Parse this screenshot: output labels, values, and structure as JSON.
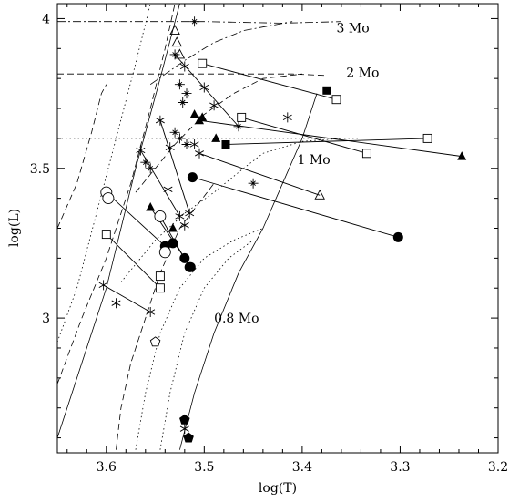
{
  "chart_data": {
    "type": "scatter",
    "title": "",
    "xlabel": "log(T)",
    "ylabel": "log(L)",
    "x_reversed": true,
    "xlim": [
      3.65,
      3.2
    ],
    "ylim": [
      2.55,
      4.05
    ],
    "grid": false,
    "x_ticks": [
      {
        "value": 3.6,
        "label": "3.6"
      },
      {
        "value": 3.5,
        "label": "3.5"
      },
      {
        "value": 3.4,
        "label": "3.4"
      },
      {
        "value": 3.3,
        "label": "3.3"
      },
      {
        "value": 3.2,
        "label": "3.2"
      }
    ],
    "y_ticks": [
      {
        "value": 3.0,
        "label": "3"
      },
      {
        "value": 3.5,
        "label": "3.5"
      },
      {
        "value": 4.0,
        "label": "4"
      }
    ],
    "annotations": [
      {
        "text": "3 Mo",
        "x": 3.365,
        "y": 3.97
      },
      {
        "text": "2 Mo",
        "x": 3.355,
        "y": 3.82
      },
      {
        "text": "1 Mo",
        "x": 3.405,
        "y": 3.53
      },
      {
        "text": "0.8 Mo",
        "x": 3.49,
        "y": 3.0
      }
    ],
    "tracks": [
      {
        "style": "dashdot",
        "points": [
          [
            3.65,
            3.99
          ],
          [
            3.5,
            3.99
          ],
          [
            3.42,
            3.985
          ],
          [
            3.36,
            3.99
          ]
        ]
      },
      {
        "style": "dashdot",
        "points": [
          [
            3.555,
            3.78
          ],
          [
            3.52,
            3.86
          ],
          [
            3.49,
            3.92
          ],
          [
            3.46,
            3.96
          ],
          [
            3.41,
            3.99
          ]
        ]
      },
      {
        "style": "dashed",
        "points": [
          [
            3.65,
            3.815
          ],
          [
            3.5,
            3.815
          ],
          [
            3.44,
            3.815
          ],
          [
            3.41,
            3.815
          ],
          [
            3.375,
            3.81
          ]
        ]
      },
      {
        "style": "dashed",
        "points": [
          [
            3.57,
            3.42
          ],
          [
            3.53,
            3.58
          ],
          [
            3.5,
            3.68
          ],
          [
            3.47,
            3.75
          ],
          [
            3.44,
            3.8
          ],
          [
            3.4,
            3.815
          ]
        ]
      },
      {
        "style": "dotted",
        "points": [
          [
            3.65,
            3.6
          ],
          [
            3.48,
            3.6
          ],
          [
            3.38,
            3.6
          ],
          [
            3.34,
            3.6
          ]
        ]
      },
      {
        "style": "dotted",
        "points": [
          [
            3.585,
            3.12
          ],
          [
            3.55,
            3.26
          ],
          [
            3.52,
            3.35
          ],
          [
            3.49,
            3.42
          ],
          [
            3.46,
            3.5
          ],
          [
            3.44,
            3.55
          ],
          [
            3.4,
            3.59
          ],
          [
            3.36,
            3.6
          ]
        ]
      },
      {
        "style": "solid",
        "points": [
          [
            3.65,
            2.6
          ],
          [
            3.6,
            3.1
          ],
          [
            3.57,
            3.5
          ],
          [
            3.545,
            3.8
          ],
          [
            3.525,
            4.05
          ]
        ]
      },
      {
        "style": "solid",
        "points": [
          [
            3.525,
            2.56
          ],
          [
            3.51,
            2.75
          ],
          [
            3.49,
            2.95
          ],
          [
            3.465,
            3.15
          ],
          [
            3.44,
            3.3
          ],
          [
            3.42,
            3.45
          ],
          [
            3.4,
            3.6
          ],
          [
            3.385,
            3.75
          ]
        ]
      },
      {
        "style": "dashed",
        "points": [
          [
            3.65,
            2.78
          ],
          [
            3.625,
            3.0
          ],
          [
            3.6,
            3.2
          ],
          [
            3.575,
            3.45
          ],
          [
            3.555,
            3.7
          ],
          [
            3.54,
            3.9
          ],
          [
            3.53,
            4.05
          ]
        ]
      },
      {
        "style": "dashed",
        "points": [
          [
            3.59,
            2.56
          ],
          [
            3.585,
            2.7
          ],
          [
            3.575,
            2.85
          ],
          [
            3.56,
            3.0
          ],
          [
            3.545,
            3.15
          ],
          [
            3.525,
            3.3
          ],
          [
            3.49,
            3.45
          ]
        ]
      },
      {
        "style": "dotted",
        "points": [
          [
            3.65,
            2.92
          ],
          [
            3.63,
            3.1
          ],
          [
            3.61,
            3.35
          ],
          [
            3.59,
            3.6
          ],
          [
            3.57,
            3.85
          ],
          [
            3.555,
            4.05
          ]
        ]
      },
      {
        "style": "dotted",
        "points": [
          [
            3.57,
            2.56
          ],
          [
            3.56,
            2.75
          ],
          [
            3.545,
            2.95
          ],
          [
            3.525,
            3.1
          ],
          [
            3.5,
            3.2
          ],
          [
            3.47,
            3.26
          ],
          [
            3.44,
            3.3
          ]
        ]
      },
      {
        "style": "dotted",
        "points": [
          [
            3.545,
            2.56
          ],
          [
            3.535,
            2.75
          ],
          [
            3.52,
            2.95
          ],
          [
            3.5,
            3.1
          ],
          [
            3.475,
            3.2
          ],
          [
            3.45,
            3.26
          ]
        ]
      },
      {
        "style": "dashed",
        "points": [
          [
            3.65,
            3.3
          ],
          [
            3.63,
            3.45
          ],
          [
            3.615,
            3.62
          ],
          [
            3.605,
            3.75
          ],
          [
            3.6,
            3.78
          ]
        ]
      }
    ],
    "pairs": [
      {
        "from": {
          "sym": "square-open",
          "x": 3.6,
          "y": 3.28
        },
        "to": {
          "sym": "square-open",
          "x": 3.545,
          "y": 3.1
        },
        "mid": {
          "sym": "square-open",
          "x": 3.545,
          "y": 3.14
        }
      },
      {
        "from": {
          "sym": "asterisk",
          "x": 3.565,
          "y": 3.56
        },
        "to": {
          "sym": "asterisk",
          "x": 3.525,
          "y": 3.34
        }
      },
      {
        "from": {
          "sym": "asterisk",
          "x": 3.545,
          "y": 3.66
        },
        "to": {
          "sym": "asterisk",
          "x": 3.515,
          "y": 3.35
        }
      },
      {
        "from": {
          "sym": "triangle-filled",
          "x": 3.555,
          "y": 3.37
        },
        "to": {
          "sym": "circle-filled",
          "x": 3.52,
          "y": 3.2
        }
      },
      {
        "from": {
          "sym": "circle-open",
          "x": 3.6,
          "y": 3.42
        },
        "to": {
          "sym": "circle-filled",
          "x": 3.54,
          "y": 3.24
        }
      },
      {
        "from": {
          "sym": "circle-open",
          "x": 3.545,
          "y": 3.34
        },
        "to": {
          "sym": "circle-filled",
          "x": 3.515,
          "y": 3.17
        }
      },
      {
        "from": {
          "sym": "circle-filled",
          "x": 3.512,
          "y": 3.47
        },
        "to": {
          "sym": "circle-filled",
          "x": 3.302,
          "y": 3.27
        }
      },
      {
        "from": {
          "sym": "square-open",
          "x": 3.502,
          "y": 3.85
        },
        "to": {
          "sym": "square-open",
          "x": 3.365,
          "y": 3.73
        },
        "mid": {
          "sym": "square-filled",
          "x": 3.375,
          "y": 3.76
        }
      },
      {
        "from": {
          "sym": "star",
          "x": 3.53,
          "y": 3.88
        },
        "to": {
          "sym": "star",
          "x": 3.465,
          "y": 3.64
        }
      },
      {
        "from": {
          "sym": "triangle-filled",
          "x": 3.505,
          "y": 3.66
        },
        "to": {
          "sym": "triangle-filled",
          "x": 3.237,
          "y": 3.54
        }
      },
      {
        "from": {
          "sym": "square-open",
          "x": 3.462,
          "y": 3.67
        },
        "to": {
          "sym": "square-open",
          "x": 3.334,
          "y": 3.55
        },
        "mid": {
          "sym": "asterisk",
          "x": 3.415,
          "y": 3.67
        }
      },
      {
        "from": {
          "sym": "square-filled",
          "x": 3.478,
          "y": 3.58
        },
        "to": {
          "sym": "square-open",
          "x": 3.272,
          "y": 3.6
        }
      },
      {
        "from": {
          "sym": "asterisk",
          "x": 3.505,
          "y": 3.55
        },
        "to": {
          "sym": "triangle-open",
          "x": 3.382,
          "y": 3.41
        },
        "mid": {
          "sym": "star",
          "x": 3.45,
          "y": 3.45
        }
      },
      {
        "from": {
          "sym": "asterisk",
          "x": 3.603,
          "y": 3.11
        },
        "to": {
          "sym": "asterisk",
          "x": 3.555,
          "y": 3.02
        },
        "mid": {
          "sym": "asterisk",
          "x": 3.59,
          "y": 3.05
        }
      }
    ],
    "points": [
      {
        "sym": "star",
        "x": 3.51,
        "y": 3.99
      },
      {
        "sym": "triangle-open",
        "x": 3.53,
        "y": 3.96
      },
      {
        "sym": "triangle-open",
        "x": 3.528,
        "y": 3.92
      },
      {
        "sym": "triangle-open",
        "x": 3.525,
        "y": 3.88
      },
      {
        "sym": "asterisk",
        "x": 3.52,
        "y": 3.84
      },
      {
        "sym": "star",
        "x": 3.525,
        "y": 3.78
      },
      {
        "sym": "star",
        "x": 3.518,
        "y": 3.75
      },
      {
        "sym": "star",
        "x": 3.522,
        "y": 3.72
      },
      {
        "sym": "asterisk",
        "x": 3.5,
        "y": 3.77
      },
      {
        "sym": "asterisk",
        "x": 3.49,
        "y": 3.71
      },
      {
        "sym": "triangle-filled",
        "x": 3.51,
        "y": 3.68
      },
      {
        "sym": "triangle-filled",
        "x": 3.502,
        "y": 3.67
      },
      {
        "sym": "triangle-filled",
        "x": 3.488,
        "y": 3.6
      },
      {
        "sym": "star",
        "x": 3.53,
        "y": 3.62
      },
      {
        "sym": "star",
        "x": 3.525,
        "y": 3.6
      },
      {
        "sym": "star",
        "x": 3.518,
        "y": 3.58
      },
      {
        "sym": "asterisk",
        "x": 3.51,
        "y": 3.58
      },
      {
        "sym": "asterisk",
        "x": 3.535,
        "y": 3.57
      },
      {
        "sym": "star",
        "x": 3.56,
        "y": 3.52
      },
      {
        "sym": "star",
        "x": 3.555,
        "y": 3.5
      },
      {
        "sym": "asterisk",
        "x": 3.537,
        "y": 3.43
      },
      {
        "sym": "triangle-filled",
        "x": 3.532,
        "y": 3.3
      },
      {
        "sym": "asterisk",
        "x": 3.52,
        "y": 3.31
      },
      {
        "sym": "circle-open",
        "x": 3.598,
        "y": 3.4
      },
      {
        "sym": "circle-open",
        "x": 3.54,
        "y": 3.22
      },
      {
        "sym": "circle-filled",
        "x": 3.532,
        "y": 3.25
      },
      {
        "sym": "circle-filled",
        "x": 3.514,
        "y": 3.17
      },
      {
        "sym": "pentagon-open",
        "x": 3.55,
        "y": 2.92
      },
      {
        "sym": "pentagon-filled",
        "x": 3.52,
        "y": 2.66
      },
      {
        "sym": "pentagon-filled",
        "x": 3.516,
        "y": 2.6
      },
      {
        "sym": "asterisk",
        "x": 3.52,
        "y": 2.63
      }
    ]
  }
}
